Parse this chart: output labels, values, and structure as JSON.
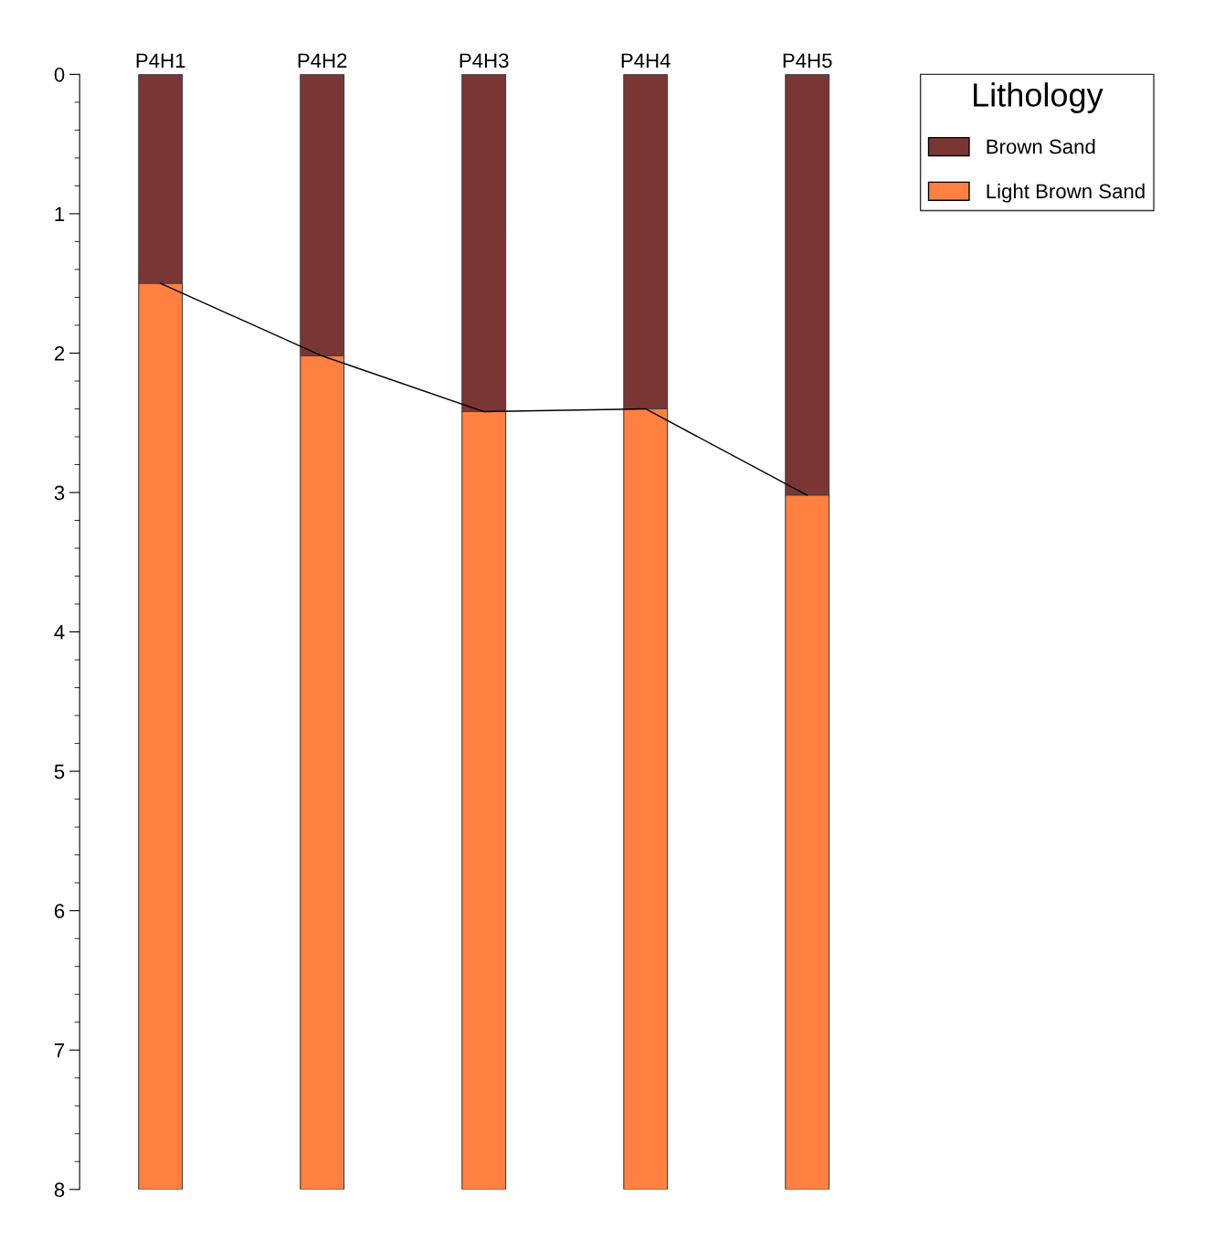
{
  "chart_data": {
    "type": "bar",
    "stacked": true,
    "legend_title": "Lithology",
    "legend": "top right",
    "grid": false,
    "categories": [
      "P4H1",
      "P4H2",
      "P4H3",
      "P4H4",
      "P4H5"
    ],
    "ylim": [
      8,
      0
    ],
    "yticks": [
      0,
      1,
      2,
      3,
      4,
      5,
      6,
      7,
      8
    ],
    "series": [
      {
        "name": "Brown Sand",
        "color": "#7a3535",
        "values": [
          1.5,
          2.02,
          2.42,
          2.4,
          3.02
        ]
      },
      {
        "name": "Light Brown Sand",
        "color": "#ff8040",
        "values": [
          6.5,
          5.98,
          5.58,
          5.6,
          4.98
        ]
      },
      {
        "type": "line",
        "color": "#000000",
        "values": [
          1.5,
          2.02,
          2.42,
          2.4,
          3.02
        ]
      }
    ]
  }
}
